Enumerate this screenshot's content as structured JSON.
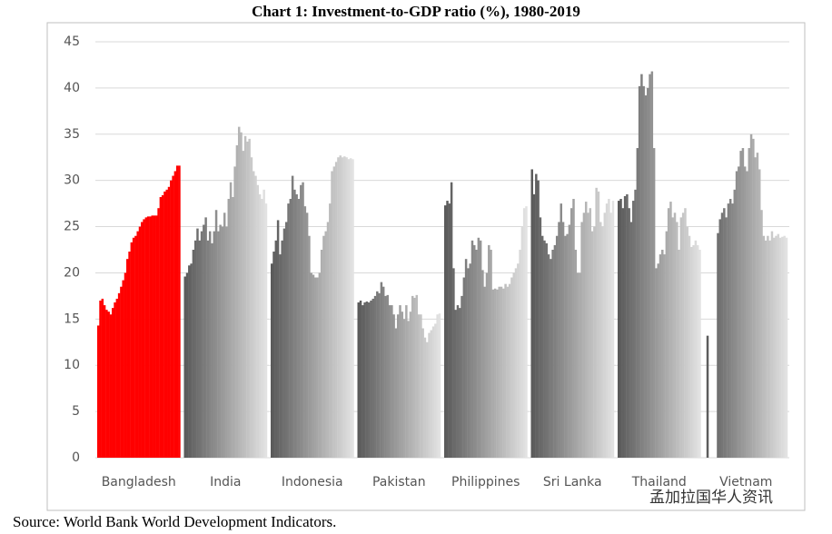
{
  "chart_data": {
    "type": "bar",
    "title": "Chart 1: Investment-to-GDP ratio (%), 1980-2019",
    "source": "Source: World Bank World Development Indicators.",
    "watermark": "孟加拉国华人资讯",
    "categories": [
      "Bangladesh",
      "India",
      "Indonesia",
      "Pakistan",
      "Philippines",
      "Sri Lanka",
      "Thailand",
      "Vietnam"
    ],
    "values": [
      [
        14.3,
        17.0,
        17.2,
        16.5,
        16.0,
        15.8,
        15.5,
        16.2,
        16.8,
        17.2,
        17.8,
        18.5,
        19.2,
        20.0,
        21.5,
        22.3,
        23.3,
        23.8,
        24.0,
        24.5,
        25.0,
        25.5,
        25.8,
        26.0,
        26.1,
        26.1,
        26.2,
        26.2,
        26.2,
        27.0,
        28.2,
        28.4,
        28.8,
        29.0,
        29.3,
        30.0,
        30.5,
        31.0,
        31.6,
        31.6
      ],
      [
        19.6,
        20.0,
        20.8,
        21.0,
        22.5,
        23.5,
        24.8,
        23.5,
        24.5,
        25.2,
        26.0,
        23.5,
        24.5,
        23.2,
        24.5,
        26.8,
        24.5,
        25.2,
        25.0,
        26.5,
        25.0,
        28.0,
        29.8,
        28.2,
        31.5,
        33.8,
        35.8,
        35.2,
        33.2,
        34.8,
        34.2,
        34.5,
        32.5,
        31.0,
        30.5,
        29.5,
        28.5,
        28.0,
        29.0,
        27.5
      ],
      [
        21.0,
        22.3,
        23.5,
        25.7,
        22.0,
        23.5,
        24.8,
        25.5,
        27.5,
        28.0,
        30.5,
        29.0,
        28.5,
        28.0,
        29.5,
        29.8,
        27.2,
        26.5,
        24.0,
        20.0,
        19.8,
        19.5,
        19.5,
        20.0,
        22.5,
        24.0,
        24.5,
        25.5,
        27.5,
        31.0,
        31.5,
        32.0,
        32.5,
        32.7,
        32.5,
        32.6,
        32.5,
        32.3,
        32.4,
        32.3
      ],
      [
        16.8,
        17.0,
        16.5,
        16.8,
        16.9,
        16.8,
        17.0,
        17.2,
        17.5,
        18.0,
        17.8,
        19.0,
        18.5,
        17.5,
        17.6,
        16.5,
        16.5,
        15.5,
        14.0,
        15.5,
        16.5,
        15.8,
        15.0,
        16.5,
        14.8,
        15.8,
        17.5,
        17.3,
        17.6,
        15.5,
        15.5,
        14.0,
        13.0,
        12.5,
        13.5,
        13.8,
        14.2,
        14.5,
        15.5,
        15.6
      ],
      [
        27.3,
        27.8,
        27.5,
        29.8,
        20.5,
        16.0,
        16.5,
        16.2,
        17.5,
        19.5,
        21.5,
        20.5,
        21.0,
        23.5,
        23.0,
        22.5,
        23.8,
        23.5,
        20.3,
        18.5,
        20.0,
        23.0,
        22.5,
        18.2,
        18.3,
        18.2,
        18.5,
        18.5,
        18.3,
        18.8,
        18.5,
        18.8,
        19.5,
        20.0,
        20.5,
        21.0,
        22.5,
        25.0,
        27.0,
        27.2
      ],
      [
        31.2,
        28.5,
        30.7,
        30.0,
        26.0,
        24.0,
        23.5,
        23.2,
        22.0,
        21.5,
        22.5,
        23.0,
        24.0,
        25.5,
        27.5,
        25.5,
        24.0,
        24.2,
        25.2,
        27.0,
        28.0,
        22.5,
        20.0,
        20.0,
        25.5,
        26.5,
        27.7,
        26.5,
        27.0,
        24.5,
        25.0,
        29.2,
        28.8,
        25.5,
        25.0,
        26.5,
        27.5,
        28.0,
        26.5,
        27.8
      ],
      [
        27.8,
        28.0,
        27.0,
        28.3,
        28.5,
        27.0,
        25.5,
        27.8,
        29.0,
        33.5,
        40.2,
        41.5,
        40.2,
        39.2,
        40.0,
        41.5,
        41.8,
        33.5,
        20.5,
        21.0,
        22.0,
        22.5,
        22.0,
        24.5,
        27.0,
        27.7,
        26.0,
        26.5,
        25.5,
        22.5,
        26.0,
        26.5,
        27.0,
        25.0,
        24.0,
        22.8,
        23.0,
        23.5,
        23.0,
        22.5
      ],
      [
        null,
        13.2,
        null,
        null,
        null,
        null,
        24.3,
        25.8,
        26.5,
        27.0,
        26.0,
        27.5,
        28.0,
        27.5,
        29.0,
        31.0,
        31.5,
        33.2,
        33.5,
        31.5,
        31.0,
        33.5,
        35.0,
        34.5,
        32.5,
        33.0,
        31.2,
        26.8,
        24.0,
        23.5,
        24.0,
        23.5,
        24.5,
        23.8,
        24.0,
        24.2,
        23.8,
        23.9,
        24.0,
        23.8
      ]
    ],
    "bar_colors": [
      [
        "#ff0000",
        "#ff0000"
      ],
      [
        "#5a5a5a",
        "#e2e2e2"
      ],
      [
        "#5a5a5a",
        "#e2e2e2"
      ],
      [
        "#5a5a5a",
        "#e2e2e2"
      ],
      [
        "#5a5a5a",
        "#e2e2e2"
      ],
      [
        "#5a5a5a",
        "#e2e2e2"
      ],
      [
        "#5a5a5a",
        "#e2e2e2"
      ],
      [
        "#5a5a5a",
        "#e2e2e2"
      ]
    ],
    "ylim": [
      0,
      45
    ],
    "yticks": [
      0,
      5,
      10,
      15,
      20,
      25,
      30,
      35,
      40,
      45
    ],
    "grid": true
  }
}
